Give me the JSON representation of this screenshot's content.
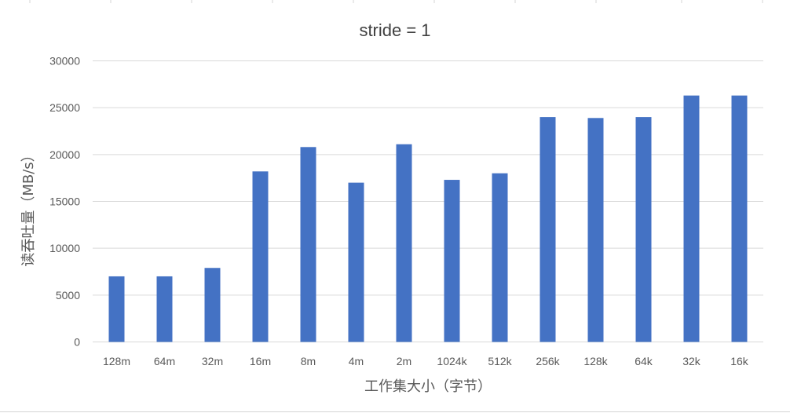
{
  "chart_data": {
    "type": "bar",
    "title": "stride = 1",
    "xlabel": "工作集大小（字节）",
    "ylabel": "读吞吐量（MB/s）",
    "ylim": [
      0,
      30000
    ],
    "yticks": [
      0,
      5000,
      10000,
      15000,
      20000,
      25000,
      30000
    ],
    "grid": true,
    "legend": "none",
    "bar_color": "#4472C4",
    "gridline_color": "#D9D9D9",
    "categories": [
      "128m",
      "64m",
      "32m",
      "16m",
      "8m",
      "4m",
      "2m",
      "1024k",
      "512k",
      "256k",
      "128k",
      "64k",
      "32k",
      "16k"
    ],
    "values": [
      7000,
      7000,
      7900,
      18200,
      20800,
      17000,
      21100,
      17300,
      18000,
      24000,
      23900,
      24000,
      26300,
      26300
    ]
  }
}
